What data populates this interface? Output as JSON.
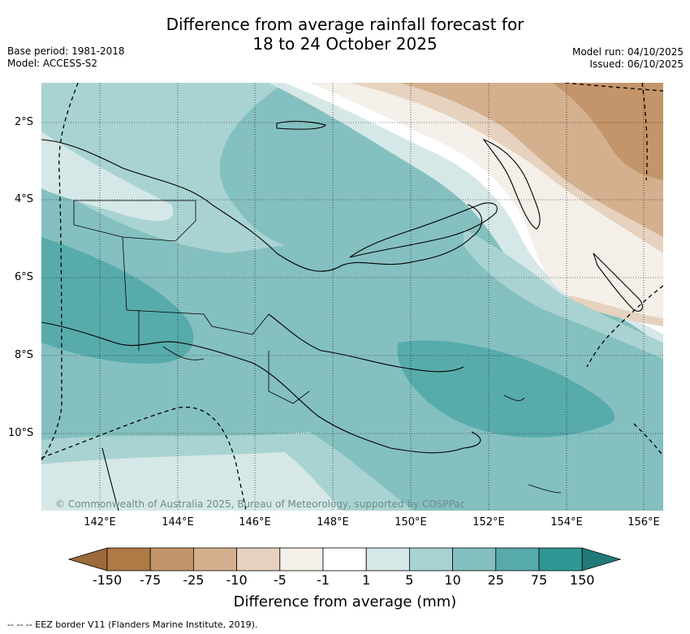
{
  "header": {
    "title_line1": "Difference from average rainfall forecast for",
    "title_line2": "18 to 24 October 2025",
    "base_period": "Base period: 1981-2018",
    "model": "Model: ACCESS-S2",
    "model_run": "Model run: 04/10/2025",
    "issued": "Issued: 06/10/2025"
  },
  "map": {
    "copyright": "© Commonwealth of Australia 2025, Bureau of Meteorology, supported by COSPPac",
    "lat_labels": [
      "2°S",
      "4°S",
      "6°S",
      "8°S",
      "10°S"
    ],
    "lon_labels": [
      "142°E",
      "144°E",
      "146°E",
      "148°E",
      "150°E",
      "152°E",
      "154°E",
      "156°E"
    ]
  },
  "colorbar": {
    "tick_labels": [
      "-150",
      "-75",
      "-25",
      "-10",
      "-5",
      "-1",
      "1",
      "5",
      "10",
      "25",
      "75",
      "150"
    ],
    "colors": [
      "#9c6a3a",
      "#b07a45",
      "#c4956a",
      "#d4b08e",
      "#e6d2bf",
      "#f4efe9",
      "#ffffff",
      "#d5e8e7",
      "#a9d3d2",
      "#84c0bf",
      "#58abab",
      "#2e9895",
      "#1f7a78"
    ],
    "label": "Difference from average (mm)"
  },
  "legend_note": "--  --  -- EEZ border V11 (Flanders Marine Institute, 2019)."
}
